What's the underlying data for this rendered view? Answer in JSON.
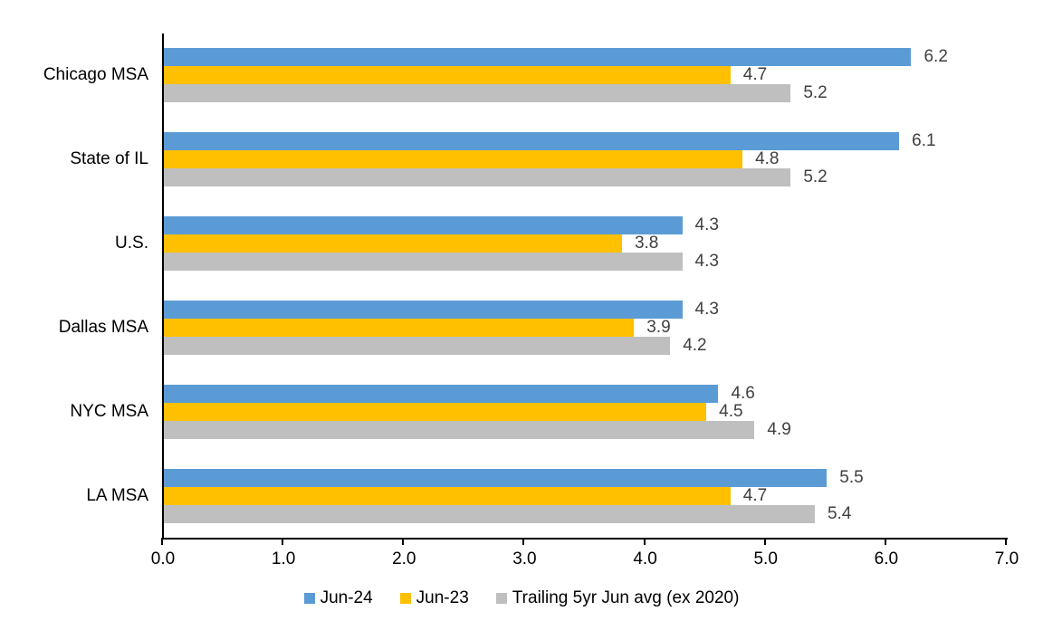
{
  "chart_data": {
    "type": "bar",
    "orientation": "horizontal",
    "categories": [
      "Chicago MSA",
      "State of IL",
      "U.S.",
      "Dallas MSA",
      "NYC MSA",
      "LA MSA"
    ],
    "series": [
      {
        "name": "Jun-24",
        "color": "#5B9BD5",
        "values": [
          6.2,
          6.1,
          4.3,
          4.3,
          4.6,
          5.5
        ]
      },
      {
        "name": "Jun-23",
        "color": "#FFC000",
        "values": [
          4.7,
          4.8,
          3.8,
          3.9,
          4.5,
          4.7
        ]
      },
      {
        "name": "Trailing 5yr Jun avg (ex 2020)",
        "color": "#BFBFBF",
        "values": [
          5.2,
          5.2,
          4.3,
          4.2,
          4.9,
          5.4
        ]
      }
    ],
    "xlim": [
      0,
      7
    ],
    "x_ticks": [
      "0.0",
      "1.0",
      "2.0",
      "3.0",
      "4.0",
      "5.0",
      "6.0",
      "7.0"
    ],
    "grid": false,
    "value_labels": true,
    "legend_position": "bottom"
  },
  "colors": {
    "axis": "#000000",
    "value_label": "#404040",
    "category_label": "#000000",
    "tick_label": "#000000",
    "legend_label": "#000000",
    "background": "#FFFFFF"
  }
}
